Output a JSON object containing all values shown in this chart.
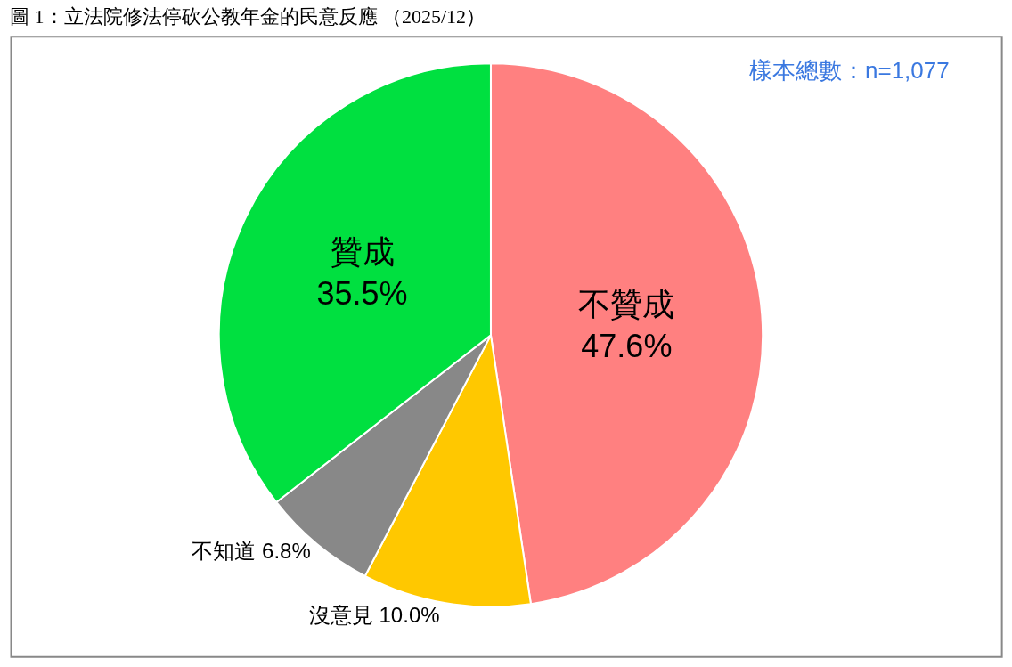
{
  "chart_data": {
    "type": "pie",
    "title": "圖 1：立法院修法停砍公教年金的民意反應 （2025/12）",
    "categories": [
      "不贊成",
      "沒意見",
      "不知道",
      "贊成"
    ],
    "values": [
      47.6,
      10.0,
      6.8,
      35.5
    ],
    "value_labels": [
      "47.6%",
      "10.0%",
      "6.8%",
      "35.5%"
    ],
    "colors": [
      "#ff8080",
      "#ffc800",
      "#888888",
      "#00e040"
    ],
    "annotations": [
      "樣本總數：n=1,077"
    ],
    "legend": false
  }
}
